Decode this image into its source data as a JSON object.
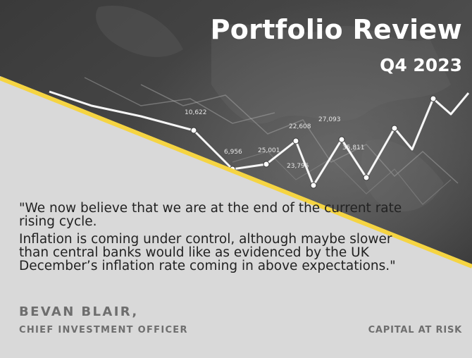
{
  "header": {
    "title": "Portfolio Review",
    "subtitle": "Q4 2023"
  },
  "quote": {
    "paragraph_1": "\"We now believe that we are at the end of the current rate rising cycle.",
    "paragraph_2": "Inflation is coming under control, although maybe slower than central banks would like as evidenced by the UK December’s inflation rate coming in above expectations.\""
  },
  "attribution": {
    "name": "BEVAN BLAIR,",
    "role": "CHIEF INVESTMENT OFFICER"
  },
  "disclaimer": "CAPITAL AT RISK",
  "background_chart_labels": [
    "10,622",
    "6,956",
    "25,001",
    "22,608",
    "23,795",
    "35,811",
    "27,093"
  ],
  "colors": {
    "accent": "#f5d442",
    "panel": "#d9d9d9",
    "image_dark": "#3a3a3a"
  }
}
